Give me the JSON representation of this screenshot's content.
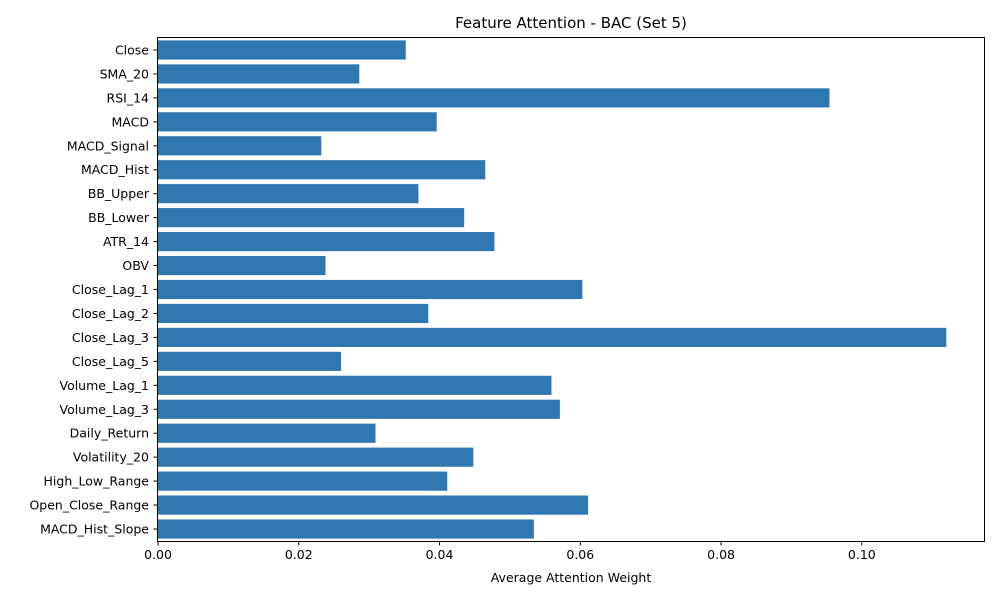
{
  "chart_data": {
    "type": "bar",
    "orientation": "horizontal",
    "title": "Feature Attention - BAC (Set 5)",
    "xlabel": "Average Attention Weight",
    "ylabel": "",
    "xlim": [
      0,
      0.1175
    ],
    "xticks": [
      0.0,
      0.02,
      0.04,
      0.06,
      0.08,
      0.1
    ],
    "xtick_labels": [
      "0.00",
      "0.02",
      "0.04",
      "0.06",
      "0.08",
      "0.10"
    ],
    "grid": false,
    "legend": "none",
    "color": "#2f77b0",
    "categories": [
      "Close",
      "SMA_20",
      "RSI_14",
      "MACD",
      "MACD_Signal",
      "MACD_Hist",
      "BB_Upper",
      "BB_Lower",
      "ATR_14",
      "OBV",
      "Close_Lag_1",
      "Close_Lag_2",
      "Close_Lag_3",
      "Close_Lag_5",
      "Volume_Lag_1",
      "Volume_Lag_3",
      "Daily_Return",
      "Volatility_20",
      "High_Low_Range",
      "Open_Close_Range",
      "MACD_Hist_Slope"
    ],
    "values": [
      0.0352,
      0.0286,
      0.0954,
      0.0396,
      0.0232,
      0.0465,
      0.037,
      0.0435,
      0.0478,
      0.0238,
      0.0603,
      0.0384,
      0.112,
      0.026,
      0.0559,
      0.0571,
      0.0309,
      0.0448,
      0.0411,
      0.0611,
      0.0534
    ]
  }
}
